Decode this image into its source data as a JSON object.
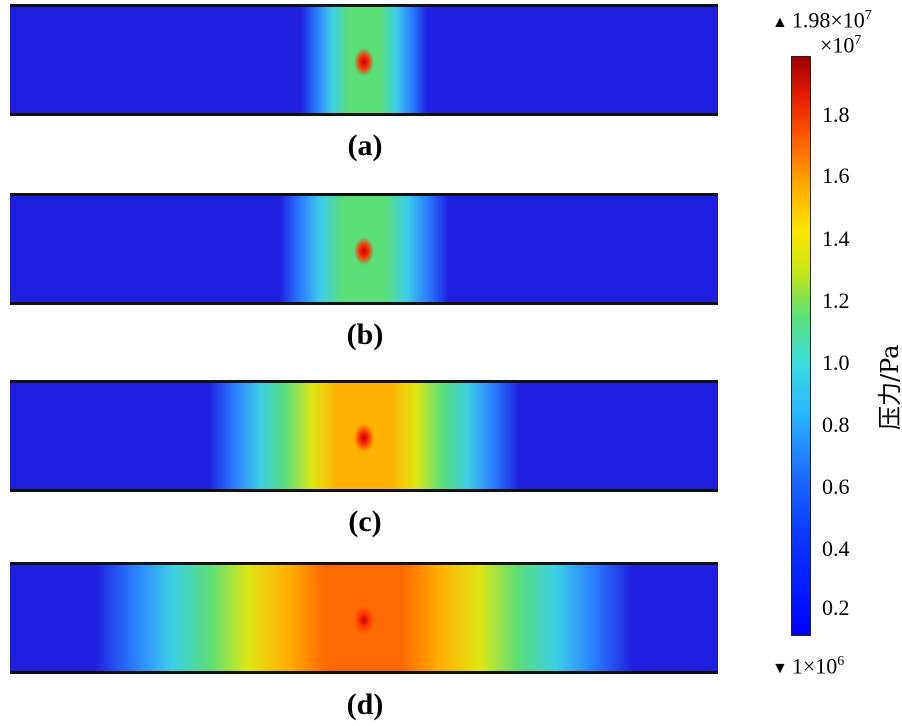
{
  "panels": [
    {
      "label": "(a)",
      "spread": 0.09,
      "peak": 0.55
    },
    {
      "label": "(b)",
      "spread": 0.12,
      "peak": 0.62
    },
    {
      "label": "(c)",
      "spread": 0.22,
      "peak": 0.8
    },
    {
      "label": "(d)",
      "spread": 0.38,
      "peak": 0.93
    }
  ],
  "colorbar": {
    "max_label": "1.98×10",
    "max_exp": "7",
    "multiplier": "×10",
    "multiplier_exp": "7",
    "min_label": "1×10",
    "min_exp": "6",
    "ticks": [
      "1.8",
      "1.6",
      "1.4",
      "1.2",
      "1.0",
      "0.8",
      "0.6",
      "0.4",
      "0.2"
    ],
    "title": "压力/Pa"
  },
  "colors": {
    "low": "#1f1fe0",
    "high": "#c00000"
  }
}
